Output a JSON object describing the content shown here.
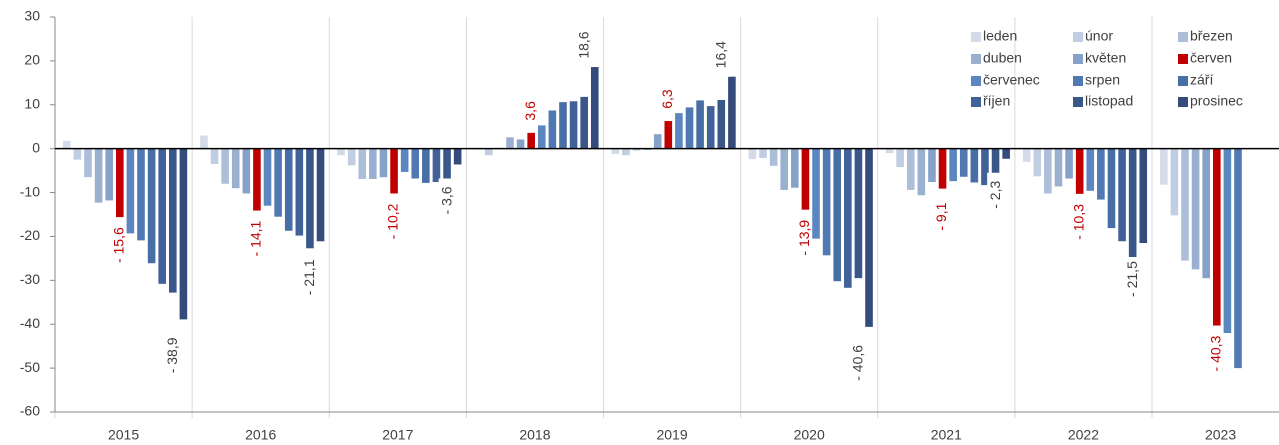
{
  "chart_data": {
    "type": "bar",
    "categories": [
      "2015",
      "2016",
      "2017",
      "2018",
      "2019",
      "2020",
      "2021",
      "2022",
      "2023"
    ],
    "ylim": [
      -60,
      30
    ],
    "yticks": [
      -60,
      -50,
      -40,
      -30,
      -20,
      -10,
      0,
      10,
      20,
      30
    ],
    "grid": false,
    "legend": "top-right",
    "series": [
      {
        "name": "leden",
        "color": "#d3dbe8",
        "values": [
          1.8,
          3.0,
          -1.5,
          -0.2,
          -1.2,
          -2.4,
          -1.0,
          -3.0,
          -8.2
        ]
      },
      {
        "name": "únor",
        "color": "#c0cde2",
        "values": [
          -2.5,
          -3.5,
          -3.8,
          -1.5,
          -1.5,
          -2.1,
          -4.2,
          -6.3,
          -15.2
        ]
      },
      {
        "name": "březen",
        "color": "#adbed9",
        "values": [
          -6.5,
          -8.0,
          -6.9,
          0.2,
          -0.4,
          -3.9,
          -9.4,
          -10.2,
          -25.5
        ]
      },
      {
        "name": "duben",
        "color": "#9ab0d1",
        "values": [
          -12.3,
          -9.0,
          -6.9,
          2.6,
          -0.3,
          -9.4,
          -10.6,
          -8.6,
          -27.5
        ]
      },
      {
        "name": "květen",
        "color": "#87a2c9",
        "values": [
          -11.8,
          -10.2,
          -6.5,
          2.1,
          3.3,
          -8.9,
          -7.6,
          -6.8,
          -29.5
        ]
      },
      {
        "name": "červen",
        "color": "#c00000",
        "values": [
          -15.6,
          -14.1,
          -10.2,
          3.6,
          6.3,
          -13.9,
          -9.1,
          -10.3,
          -40.3
        ],
        "value_labels": [
          "- 15,6",
          "- 14,1",
          "- 10,2",
          "3,6",
          "6,3",
          "- 13,9",
          "- 9,1",
          "- 10,3",
          "- 40,3"
        ]
      },
      {
        "name": "červenec",
        "color": "#5b86c0",
        "values": [
          -19.3,
          -13.0,
          -5.3,
          5.3,
          8.1,
          -20.5,
          -7.4,
          -9.6,
          -42.0
        ]
      },
      {
        "name": "srpen",
        "color": "#5079b4",
        "values": [
          -20.9,
          -15.5,
          -6.8,
          8.7,
          9.4,
          -24.3,
          -6.4,
          -11.6,
          -50.0
        ]
      },
      {
        "name": "září",
        "color": "#486ea6",
        "values": [
          -26.1,
          -18.7,
          -7.8,
          10.6,
          11.0,
          -30.2,
          -7.7,
          -18.1,
          null
        ]
      },
      {
        "name": "říjen",
        "color": "#416298",
        "values": [
          -30.8,
          -19.8,
          -7.6,
          10.8,
          9.7,
          -31.7,
          -8.3,
          -21.1,
          null
        ]
      },
      {
        "name": "listopad",
        "color": "#3a578a",
        "values": [
          -32.8,
          -22.7,
          -8.5,
          11.8,
          11.1,
          -29.5,
          -8.5,
          -25.4,
          null
        ]
      },
      {
        "name": "prosinec",
        "color": "#344b7c",
        "values": [
          -38.9,
          -21.1,
          -3.6,
          18.6,
          16.4,
          -40.6,
          -2.3,
          -21.5,
          null
        ],
        "value_labels": [
          "- 38,9",
          "- 21,1",
          "- 3,6",
          "18,6",
          "16,4",
          "- 40,6",
          "- 2,3",
          "- 21,5",
          null
        ]
      }
    ]
  }
}
